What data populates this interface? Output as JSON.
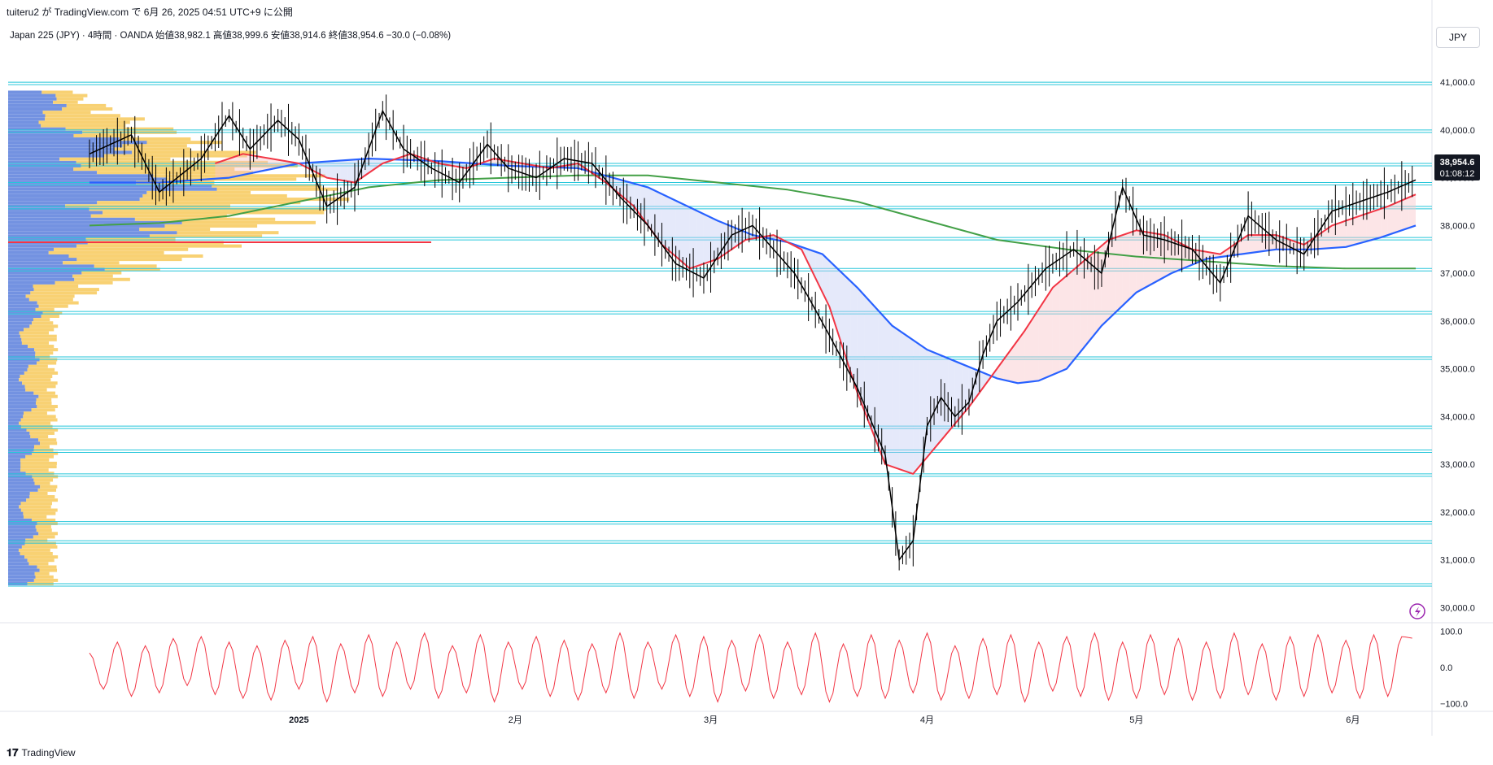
{
  "header": {
    "published_by": "tuiteru2 が TradingView.com で 6月 26, 2025 04:51 UTC+9 に公開",
    "symbol_info": "Japan 225 (JPY) · 4時間 · OANDA  始値38,982.1  高値38,999.6  安値38,914.6  終値38,954.6  −30.0 (−0.08%)",
    "currency": "JPY"
  },
  "footer": {
    "brand": "TradingView"
  },
  "price_tag": {
    "price": "38,954.6",
    "countdown": "01:08:12"
  },
  "colors": {
    "candle": "#000000",
    "ema_fast": "#f23645",
    "ema_mid": "#2962ff",
    "ema_slow": "#43a047",
    "oscillator": "#f23645",
    "hline": "#26c6da",
    "vp_up": "#5b7fdc",
    "vp_down": "#f7c95b",
    "poc": "#f23645"
  },
  "chart_data": [
    {
      "type": "line",
      "title": "Japan 225 (JPY) 4時間",
      "x_tick_labels": [
        "2025",
        "2月",
        "3月",
        "4月",
        "5月",
        "6月"
      ],
      "y_tick_labels": [
        "41,000.0",
        "40,000.0",
        "39,000.0",
        "38,000.0",
        "37,000.0",
        "36,000.0",
        "35,000.0",
        "34,000.0",
        "33,000.0",
        "32,000.0",
        "31,000.0",
        "30,000.0"
      ],
      "ylim": [
        29700,
        41700
      ],
      "x_range_days": [
        0,
        190
      ],
      "x_tick_days": [
        30,
        61,
        89,
        120,
        150,
        181
      ],
      "series": [
        {
          "name": "price",
          "x": [
            0,
            6,
            10,
            16,
            20,
            23,
            27,
            30,
            34,
            38,
            42,
            45,
            49,
            53,
            57,
            60,
            64,
            68,
            72,
            76,
            80,
            84,
            88,
            92,
            95,
            98,
            101,
            103,
            106,
            110,
            114,
            116,
            118,
            120,
            122,
            124,
            126,
            128,
            130,
            133,
            137,
            141,
            145,
            148,
            151,
            154,
            158,
            162,
            166,
            170,
            174,
            178,
            182,
            186,
            190
          ],
          "values": [
            39500,
            39900,
            38700,
            39400,
            40300,
            39600,
            40200,
            39800,
            38400,
            38800,
            40400,
            39600,
            39200,
            38900,
            39700,
            39200,
            39000,
            39400,
            39300,
            38600,
            38000,
            37200,
            36900,
            37800,
            38000,
            37500,
            37000,
            36500,
            35700,
            34600,
            33200,
            31000,
            31400,
            33800,
            34400,
            34000,
            34300,
            35300,
            36000,
            36400,
            37100,
            37500,
            37000,
            38800,
            37800,
            37700,
            37500,
            36800,
            38200,
            37700,
            37400,
            38300,
            38500,
            38700,
            38954.6
          ]
        },
        {
          "name": "ema_fast",
          "x": [
            18,
            22,
            26,
            30,
            34,
            38,
            42,
            46,
            50,
            54,
            58,
            62,
            66,
            70,
            74,
            78,
            82,
            86,
            90,
            94,
            98,
            102,
            106,
            110,
            114,
            118,
            122,
            126,
            130,
            134,
            138,
            142,
            146,
            150,
            154,
            158,
            162,
            166,
            170,
            174,
            178,
            182,
            186,
            190
          ],
          "values": [
            39300,
            39500,
            39400,
            39300,
            39000,
            38900,
            39300,
            39500,
            39300,
            39200,
            39400,
            39300,
            39200,
            39300,
            38900,
            38400,
            37600,
            37100,
            37300,
            37700,
            37800,
            37500,
            36300,
            34500,
            33000,
            32800,
            33500,
            34200,
            35000,
            35800,
            36700,
            37200,
            37700,
            37900,
            37800,
            37500,
            37400,
            37800,
            37800,
            37600,
            38000,
            38200,
            38400,
            38650
          ]
        },
        {
          "name": "ema_mid",
          "x": [
            0,
            10,
            20,
            30,
            40,
            50,
            60,
            70,
            80,
            90,
            95,
            100,
            105,
            110,
            115,
            120,
            125,
            130,
            133,
            136,
            140,
            145,
            150,
            155,
            160,
            165,
            170,
            175,
            180,
            185,
            190
          ],
          "values": [
            38900,
            38900,
            39000,
            39300,
            39400,
            39350,
            39250,
            39200,
            38800,
            38100,
            37800,
            37650,
            37400,
            36700,
            35900,
            35400,
            35100,
            34800,
            34700,
            34750,
            35000,
            35900,
            36600,
            37000,
            37300,
            37400,
            37500,
            37500,
            37550,
            37750,
            38000
          ]
        },
        {
          "name": "ema_slow",
          "x": [
            0,
            10,
            20,
            30,
            40,
            50,
            60,
            70,
            80,
            90,
            100,
            110,
            120,
            130,
            140,
            150,
            160,
            170,
            180,
            190
          ],
          "values": [
            38000,
            38050,
            38200,
            38500,
            38800,
            38950,
            39000,
            39050,
            39050,
            38900,
            38750,
            38500,
            38100,
            37700,
            37500,
            37350,
            37250,
            37150,
            37100,
            37100
          ]
        }
      ],
      "horizontal_levels": [
        41000,
        40000,
        39300,
        38900,
        38400,
        37750,
        37100,
        36200,
        35250,
        33800,
        33300,
        32800,
        31800,
        31400,
        30500
      ],
      "poc_level": 37650
    },
    {
      "type": "line",
      "title": "",
      "y_tick_labels": [
        "100.0",
        "0.0",
        "−100.0"
      ],
      "ylim": [
        -110,
        110
      ],
      "series": [
        {
          "name": "oscillator",
          "x": [
            0,
            2,
            4,
            6,
            8,
            10,
            12,
            14,
            16,
            18,
            20,
            22,
            24,
            26,
            28,
            30,
            32,
            34,
            36,
            38,
            40,
            42,
            44,
            46,
            48,
            50,
            52,
            54,
            56,
            58,
            60,
            62,
            64,
            66,
            68,
            70,
            72,
            74,
            76,
            78,
            80,
            82,
            84,
            86,
            88,
            90,
            92,
            94,
            96,
            98,
            100,
            102,
            104,
            106,
            108,
            110,
            112,
            114,
            116,
            118,
            120,
            122,
            124,
            126,
            128,
            130,
            132,
            134,
            136,
            138,
            140,
            142,
            144,
            146,
            148,
            150,
            152,
            154,
            156,
            158,
            160,
            162,
            164,
            166,
            168,
            170,
            172,
            174,
            176,
            178,
            180,
            182,
            184,
            186,
            188,
            190
          ],
          "values": [
            40,
            -60,
            70,
            -80,
            60,
            -70,
            80,
            -50,
            85,
            -75,
            70,
            -85,
            60,
            -90,
            75,
            -60,
            85,
            -95,
            65,
            -70,
            90,
            -80,
            70,
            -60,
            95,
            -85,
            60,
            -70,
            90,
            -95,
            70,
            -60,
            85,
            -80,
            75,
            -90,
            65,
            -70,
            95,
            -85,
            70,
            -60,
            90,
            -80,
            85,
            -95,
            75,
            -65,
            90,
            -85,
            70,
            -75,
            95,
            -95,
            65,
            -80,
            90,
            -85,
            75,
            -70,
            95,
            -90,
            60,
            -85,
            80,
            -75,
            90,
            -95,
            70,
            -65,
            85,
            -80,
            95,
            -90,
            70,
            -85,
            90,
            -75,
            80,
            -90,
            70,
            -85,
            95,
            -75,
            65,
            -90,
            85,
            -80,
            90,
            -70,
            75,
            -85,
            90,
            -80,
            85,
            80
          ]
        }
      ]
    }
  ]
}
